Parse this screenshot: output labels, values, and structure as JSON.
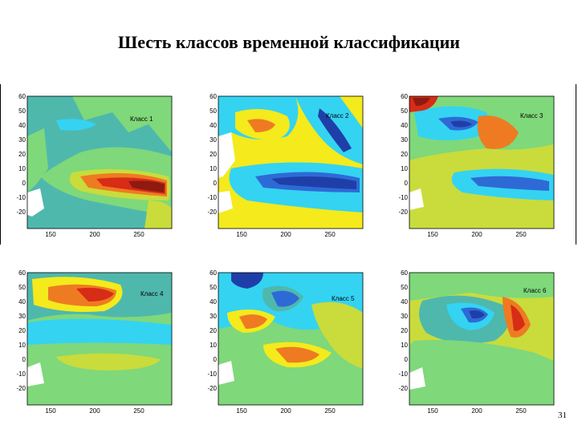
{
  "slide": {
    "title": "Шесть классов временной классификации",
    "page_number": "31"
  },
  "colors": {
    "dark_blue": "#1f3fa8",
    "blue": "#2e6ad6",
    "cyan": "#34d3f2",
    "teal": "#4fb8ad",
    "green": "#7fd87a",
    "yellow_green": "#c9dc3c",
    "yellow": "#f4ea1c",
    "orange": "#ee7b22",
    "red": "#d72c16",
    "dark_red": "#8e1a12",
    "land": "#ffffff"
  },
  "panels": [
    {
      "label": "Класс 1",
      "yticks": [
        "60",
        "50",
        "40",
        "30",
        "20",
        "10",
        "0",
        "-10",
        "-20"
      ],
      "xticks": [
        "150",
        "200",
        "250"
      ]
    },
    {
      "label": "Класс 2",
      "yticks": [
        "60",
        "50",
        "40",
        "30",
        "20",
        "10",
        "0",
        "-10",
        "-20"
      ],
      "xticks": [
        "150",
        "200",
        "250"
      ]
    },
    {
      "label": "Класс 3",
      "yticks": [
        "60",
        "50",
        "40",
        "30",
        "20",
        "10",
        "0",
        "-10",
        "-20"
      ],
      "xticks": [
        "150",
        "200",
        "250"
      ]
    },
    {
      "label": "Класс 4",
      "yticks": [
        "60",
        "50",
        "40",
        "30",
        "20",
        "10",
        "0",
        "-10",
        "-20"
      ],
      "xticks": [
        "150",
        "200",
        "250"
      ]
    },
    {
      "label": "Класс 5",
      "yticks": [
        "60",
        "50",
        "40",
        "30",
        "20",
        "10",
        "0",
        "-10",
        "-20"
      ],
      "xticks": [
        "150",
        "200",
        "250"
      ]
    },
    {
      "label": "Класс 6",
      "yticks": [
        "60",
        "50",
        "40",
        "30",
        "20",
        "10",
        "0",
        "-10",
        "-20"
      ],
      "xticks": [
        "150",
        "200",
        "250"
      ]
    }
  ]
}
